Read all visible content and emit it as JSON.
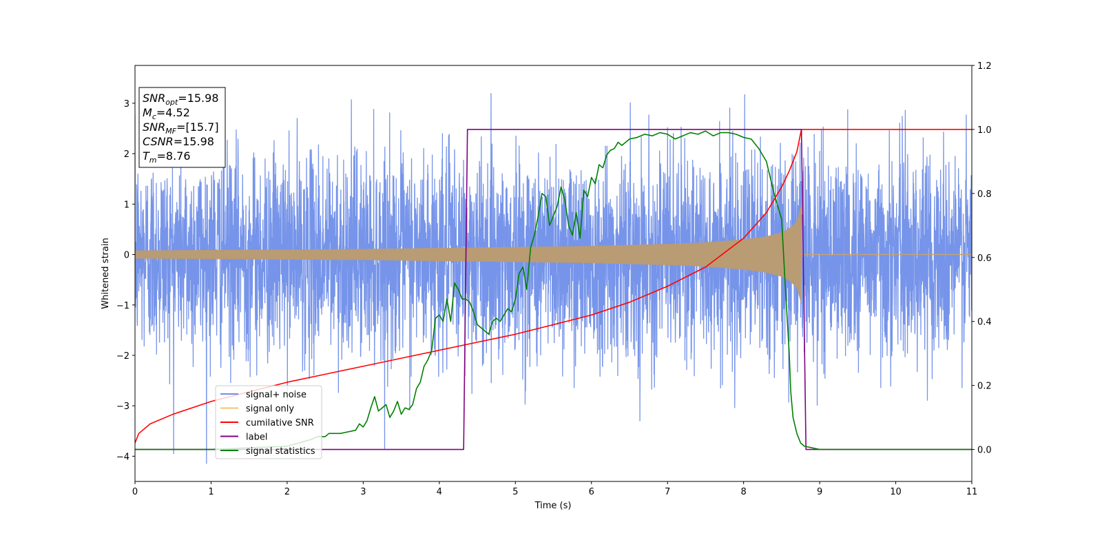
{
  "chart_data": {
    "type": "line",
    "title": "",
    "xlabel": "Time (s)",
    "ylabel": "Whitened strain",
    "y2label": "",
    "xlim": [
      0,
      11
    ],
    "ylim": [
      -4.5,
      3.75
    ],
    "y2lim": [
      -0.1,
      1.2
    ],
    "x_ticks": [
      "0",
      "1",
      "2",
      "3",
      "4",
      "5",
      "6",
      "7",
      "8",
      "9",
      "10",
      "11"
    ],
    "y_ticks": [
      "3",
      "2",
      "1",
      "0",
      "−1",
      "−2",
      "−3",
      "−4"
    ],
    "y_tick_values": [
      3,
      2,
      1,
      0,
      -1,
      -2,
      -3,
      -4
    ],
    "y2_ticks": [
      "1.2",
      "1.0",
      "0.8",
      "0.6",
      "0.4",
      "0.2",
      "0.0"
    ],
    "y2_tick_values": [
      1.2,
      1.0,
      0.8,
      0.6,
      0.4,
      0.2,
      0.0
    ],
    "grid": false,
    "legend_position": "lower-left",
    "annotations": [
      {
        "var": "SNR",
        "sub": "opt",
        "value": "=15.98"
      },
      {
        "var": "M",
        "sub": "c",
        "value": "=4.52"
      },
      {
        "var": "SNR",
        "sub": "MF",
        "value": "=[15.7]"
      },
      {
        "var": "CSNR",
        "sub": "",
        "value": "=15.98"
      },
      {
        "var": "T",
        "sub": "m",
        "value": "=8.76"
      }
    ],
    "series": [
      {
        "name": "signal+ noise",
        "color": "#6f8ee8",
        "axis": "left",
        "description_values": {
          "noise_std": 1.0,
          "peak_range": [
            -4.15,
            3.2
          ]
        }
      },
      {
        "name": "signal only",
        "color": "#f5b544",
        "axis": "left",
        "envelope_x": [
          0,
          1,
          2,
          3,
          4,
          5,
          6,
          7,
          7.5,
          8,
          8.3,
          8.5,
          8.6,
          8.7,
          8.76
        ],
        "envelope_amp": [
          0.08,
          0.09,
          0.1,
          0.11,
          0.13,
          0.15,
          0.17,
          0.21,
          0.24,
          0.3,
          0.36,
          0.44,
          0.52,
          0.66,
          1.0
        ]
      },
      {
        "name": "cumilative SNR",
        "color": "#ff0000",
        "axis": "right",
        "x": [
          0,
          0.05,
          0.2,
          0.5,
          1,
          1.5,
          2,
          2.5,
          3,
          3.5,
          4,
          4.5,
          5,
          5.5,
          6,
          6.5,
          7,
          7.5,
          8,
          8.3,
          8.5,
          8.6,
          8.7,
          8.76,
          11
        ],
        "y": [
          0.02,
          0.05,
          0.08,
          0.11,
          0.15,
          0.18,
          0.21,
          0.235,
          0.26,
          0.285,
          0.31,
          0.335,
          0.36,
          0.39,
          0.42,
          0.46,
          0.51,
          0.57,
          0.66,
          0.74,
          0.82,
          0.87,
          0.93,
          1.0,
          1.0
        ]
      },
      {
        "name": "label",
        "color": "#800080",
        "axis": "right",
        "x": [
          0,
          4.32,
          4.37,
          8.76,
          8.82,
          11
        ],
        "y": [
          0,
          0,
          1,
          1,
          0,
          0
        ]
      },
      {
        "name": "signal statistics",
        "color": "#008000",
        "axis": "right",
        "x": [
          0,
          1,
          2,
          2.3,
          2.4,
          2.5,
          2.55,
          2.7,
          2.8,
          2.9,
          2.95,
          3.0,
          3.05,
          3.1,
          3.15,
          3.2,
          3.25,
          3.3,
          3.35,
          3.4,
          3.45,
          3.5,
          3.55,
          3.6,
          3.65,
          3.7,
          3.75,
          3.8,
          3.85,
          3.9,
          3.95,
          4.0,
          4.05,
          4.1,
          4.15,
          4.2,
          4.25,
          4.3,
          4.35,
          4.4,
          4.45,
          4.5,
          4.55,
          4.6,
          4.65,
          4.7,
          4.75,
          4.8,
          4.85,
          4.9,
          4.95,
          5.0,
          5.05,
          5.1,
          5.15,
          5.2,
          5.25,
          5.3,
          5.35,
          5.4,
          5.45,
          5.5,
          5.55,
          5.6,
          5.65,
          5.7,
          5.75,
          5.8,
          5.85,
          5.9,
          5.95,
          6.0,
          6.05,
          6.1,
          6.15,
          6.2,
          6.25,
          6.3,
          6.35,
          6.4,
          6.5,
          6.6,
          6.7,
          6.8,
          6.9,
          7.0,
          7.1,
          7.2,
          7.3,
          7.4,
          7.5,
          7.6,
          7.7,
          7.8,
          7.9,
          8.0,
          8.1,
          8.2,
          8.3,
          8.4,
          8.5,
          8.55,
          8.6,
          8.62,
          8.65,
          8.7,
          8.75,
          8.8,
          8.9,
          9.0,
          11
        ],
        "y": [
          0.0,
          0.0,
          0.01,
          0.03,
          0.04,
          0.04,
          0.05,
          0.05,
          0.055,
          0.06,
          0.08,
          0.07,
          0.09,
          0.13,
          0.165,
          0.12,
          0.13,
          0.14,
          0.1,
          0.12,
          0.15,
          0.11,
          0.13,
          0.125,
          0.14,
          0.19,
          0.21,
          0.26,
          0.28,
          0.31,
          0.41,
          0.42,
          0.4,
          0.47,
          0.4,
          0.52,
          0.5,
          0.47,
          0.47,
          0.46,
          0.43,
          0.39,
          0.38,
          0.37,
          0.36,
          0.4,
          0.41,
          0.4,
          0.42,
          0.44,
          0.43,
          0.47,
          0.55,
          0.57,
          0.5,
          0.63,
          0.67,
          0.73,
          0.8,
          0.79,
          0.7,
          0.73,
          0.76,
          0.82,
          0.78,
          0.7,
          0.67,
          0.74,
          0.66,
          0.81,
          0.79,
          0.85,
          0.83,
          0.89,
          0.88,
          0.92,
          0.935,
          0.94,
          0.96,
          0.95,
          0.97,
          0.975,
          0.985,
          0.98,
          0.99,
          0.985,
          0.97,
          0.98,
          0.99,
          0.985,
          0.995,
          0.98,
          0.99,
          0.99,
          0.985,
          0.975,
          0.97,
          0.94,
          0.9,
          0.8,
          0.72,
          0.5,
          0.3,
          0.18,
          0.1,
          0.05,
          0.02,
          0.01,
          0.005,
          0.0,
          0.0
        ]
      }
    ]
  }
}
